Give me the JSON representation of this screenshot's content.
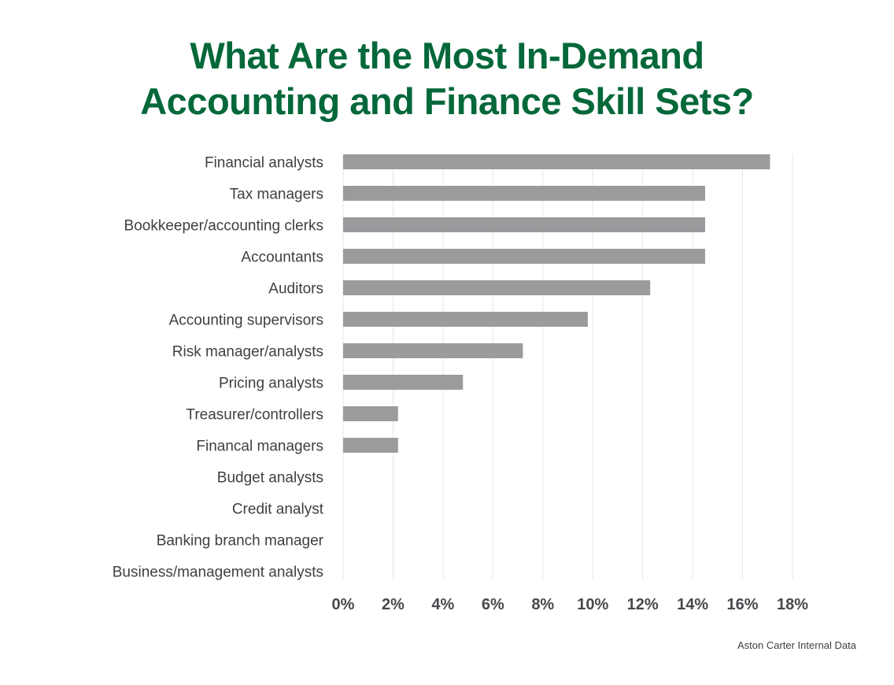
{
  "chart_data": {
    "type": "bar",
    "orientation": "horizontal",
    "title_lines": [
      "What Are the Most In-Demand",
      "Accounting and Finance Skill Sets?"
    ],
    "categories": [
      "Financial analysts",
      "Tax managers",
      "Bookkeeper/accounting clerks",
      "Accountants",
      "Auditors",
      "Accounting supervisors",
      "Risk manager/analysts",
      "Pricing analysts",
      "Treasurer/controllers",
      "Financal managers",
      "Budget analysts",
      "Credit analyst",
      "Banking branch manager",
      "Business/management analysts"
    ],
    "values": [
      17.1,
      14.5,
      14.5,
      14.5,
      12.3,
      9.8,
      7.2,
      4.8,
      2.2,
      2.2,
      0,
      0,
      0,
      0
    ],
    "unit": "%",
    "xlim": [
      0,
      18
    ],
    "xticks": [
      "0%",
      "2%",
      "4%",
      "6%",
      "8%",
      "10%",
      "12%",
      "14%",
      "16%",
      "18%"
    ],
    "grid": true,
    "source": "Aston Carter Internal Data",
    "colors": {
      "title": "#04683a",
      "bar": "#9a9b9d",
      "grid": "#e6e6e6",
      "text": "#3f3f44"
    }
  }
}
